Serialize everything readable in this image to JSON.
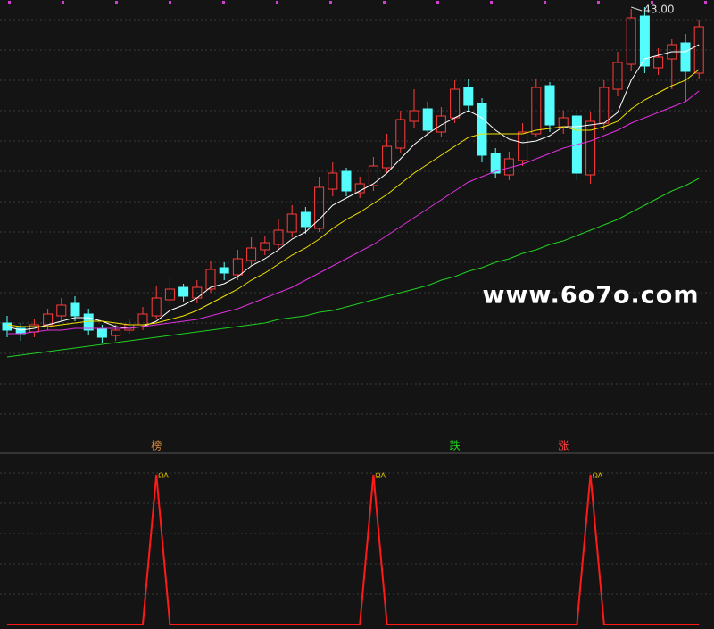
{
  "chart_data": [
    {
      "type": "candlestick",
      "up_color": "#ff3c3c",
      "down_color": "#54fcfc",
      "ylim": [
        20,
        43.5
      ],
      "open": [
        25.4,
        25.1,
        24.9,
        25.3,
        25.8,
        26.5,
        25.9,
        25.1,
        24.7,
        25.0,
        25.3,
        25.8,
        26.7,
        27.4,
        26.8,
        27.3,
        28.5,
        28.1,
        28.9,
        29.5,
        29.8,
        30.5,
        31.6,
        30.7,
        32.9,
        33.9,
        32.7,
        33.1,
        34.1,
        35.2,
        36.7,
        37.4,
        36.1,
        36.9,
        38.6,
        37.7,
        34.9,
        33.7,
        34.5,
        36.0,
        38.7,
        36.4,
        37.0,
        33.7,
        36.6,
        38.5,
        39.9,
        42.6,
        39.7,
        40.2,
        41.1,
        39.4
      ],
      "high": [
        25.8,
        25.4,
        25.6,
        26.2,
        26.8,
        26.9,
        26.2,
        25.3,
        25.3,
        25.6,
        26.3,
        27.5,
        27.9,
        27.6,
        27.8,
        28.9,
        28.8,
        29.5,
        30.2,
        30.3,
        31.2,
        32.0,
        31.9,
        33.6,
        34.4,
        34.1,
        33.6,
        34.7,
        36.0,
        37.3,
        38.5,
        37.8,
        37.5,
        39.0,
        39.1,
        38.0,
        35.2,
        35.0,
        36.6,
        39.1,
        38.9,
        37.3,
        37.3,
        37.2,
        39.0,
        40.6,
        43.0,
        43.1,
        40.8,
        41.3,
        41.6,
        42.4
      ],
      "low": [
        24.6,
        24.4,
        24.6,
        25.0,
        25.5,
        25.5,
        24.7,
        24.3,
        24.4,
        24.8,
        25.0,
        25.6,
        26.4,
        26.6,
        26.5,
        27.1,
        27.8,
        27.8,
        28.6,
        29.2,
        29.5,
        30.2,
        30.4,
        30.5,
        32.5,
        32.5,
        32.4,
        32.8,
        33.8,
        34.9,
        36.3,
        35.9,
        35.8,
        36.6,
        37.2,
        34.4,
        33.5,
        33.4,
        34.2,
        35.8,
        36.1,
        36.0,
        33.4,
        33.2,
        36.2,
        38.1,
        39.5,
        39.4,
        39.3,
        38.5,
        37.8,
        39.1
      ],
      "close": [
        25.0,
        24.8,
        25.3,
        25.9,
        26.4,
        25.8,
        25.0,
        24.6,
        25.0,
        25.3,
        25.9,
        26.8,
        27.3,
        26.9,
        27.4,
        28.4,
        28.2,
        29.0,
        29.6,
        29.9,
        30.6,
        31.5,
        30.8,
        33.0,
        33.8,
        32.8,
        33.2,
        34.2,
        35.3,
        36.8,
        37.3,
        36.2,
        37.0,
        38.5,
        37.6,
        34.8,
        33.8,
        34.6,
        36.1,
        38.6,
        36.5,
        36.9,
        33.8,
        36.7,
        38.6,
        40.0,
        42.5,
        39.8,
        40.3,
        41.0,
        39.5,
        42.0
      ],
      "series": [
        {
          "color": "#ffffff",
          "values": [
            25.2,
            25.0,
            25.1,
            25.3,
            25.5,
            25.7,
            25.7,
            25.5,
            25.2,
            25.1,
            25.2,
            25.5,
            26.1,
            26.4,
            26.8,
            27.4,
            27.6,
            28.0,
            28.6,
            29.0,
            29.5,
            30.1,
            30.5,
            31.2,
            32.0,
            32.4,
            32.8,
            33.2,
            33.8,
            34.6,
            35.4,
            36.0,
            36.5,
            36.9,
            37.3,
            36.9,
            36.2,
            35.7,
            35.5,
            35.6,
            35.9,
            36.4,
            36.4,
            36.5,
            36.6,
            37.2,
            39.0,
            40.2,
            40.4,
            40.6,
            40.6,
            41.0
          ]
        },
        {
          "color": "#f0e000",
          "values": [
            25.3,
            25.2,
            25.2,
            25.2,
            25.3,
            25.4,
            25.5,
            25.5,
            25.4,
            25.3,
            25.3,
            25.4,
            25.6,
            25.8,
            26.1,
            26.5,
            26.9,
            27.3,
            27.8,
            28.2,
            28.7,
            29.2,
            29.6,
            30.1,
            30.7,
            31.2,
            31.6,
            32.1,
            32.6,
            33.2,
            33.8,
            34.3,
            34.8,
            35.3,
            35.8,
            36.0,
            36.0,
            36.0,
            36.0,
            36.2,
            36.3,
            36.4,
            36.2,
            36.2,
            36.4,
            36.7,
            37.4,
            37.9,
            38.3,
            38.7,
            39.0,
            39.6
          ]
        },
        {
          "color": "#e030e0",
          "values": [
            24.8,
            24.8,
            24.9,
            25.0,
            25.0,
            25.1,
            25.1,
            25.1,
            25.1,
            25.1,
            25.2,
            25.3,
            25.4,
            25.5,
            25.6,
            25.8,
            26.0,
            26.2,
            26.5,
            26.8,
            27.1,
            27.4,
            27.8,
            28.2,
            28.6,
            29.0,
            29.4,
            29.8,
            30.3,
            30.8,
            31.3,
            31.8,
            32.3,
            32.8,
            33.3,
            33.6,
            33.9,
            34.1,
            34.3,
            34.6,
            34.9,
            35.2,
            35.4,
            35.6,
            35.9,
            36.2,
            36.6,
            36.9,
            37.2,
            37.5,
            37.8,
            38.4
          ]
        },
        {
          "color": "#20d020",
          "values": [
            23.5,
            23.6,
            23.7,
            23.8,
            23.9,
            24.0,
            24.1,
            24.2,
            24.3,
            24.4,
            24.5,
            24.6,
            24.7,
            24.8,
            24.9,
            25.0,
            25.1,
            25.2,
            25.3,
            25.4,
            25.6,
            25.7,
            25.8,
            26.0,
            26.1,
            26.3,
            26.5,
            26.7,
            26.9,
            27.1,
            27.3,
            27.5,
            27.8,
            28.0,
            28.3,
            28.5,
            28.8,
            29.0,
            29.3,
            29.5,
            29.8,
            30.0,
            30.3,
            30.6,
            30.9,
            31.2,
            31.6,
            32.0,
            32.4,
            32.8,
            33.1,
            33.5
          ]
        }
      ],
      "annotations": [
        {
          "label": "43.00",
          "value": 43.0
        }
      ],
      "watermark": "www.6o7o.com",
      "signals": [
        {
          "text": "榜",
          "index": 11,
          "color": "#e08a3c"
        },
        {
          "text": "跌",
          "index": 33,
          "color": "#20e020"
        },
        {
          "text": "涨",
          "index": 41,
          "color": "#ff4040"
        }
      ]
    },
    {
      "type": "line",
      "color": "#ff1a1a",
      "ylim": [
        0,
        1
      ],
      "values": [
        0,
        0,
        0,
        0,
        0,
        0,
        0,
        0,
        0,
        0,
        0,
        1,
        0,
        0,
        0,
        0,
        0,
        0,
        0,
        0,
        0,
        0,
        0,
        0,
        0,
        0,
        0,
        1,
        0,
        0,
        0,
        0,
        0,
        0,
        0,
        0,
        0,
        0,
        0,
        0,
        0,
        0,
        0,
        1,
        0,
        0,
        0,
        0,
        0,
        0,
        0,
        0
      ],
      "peak_label": "ΩA"
    }
  ]
}
